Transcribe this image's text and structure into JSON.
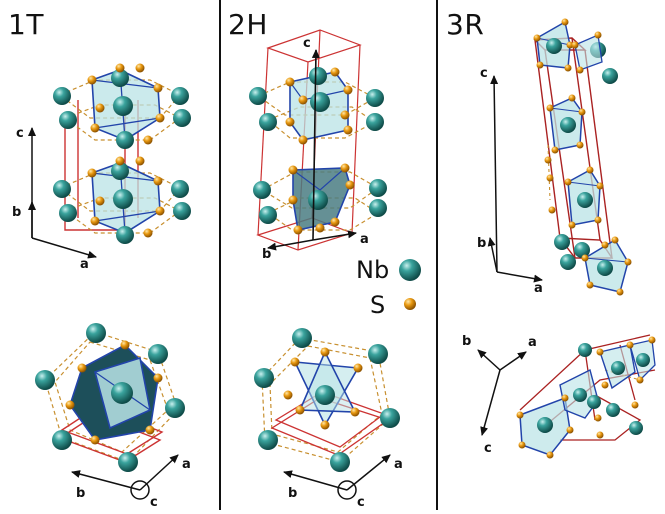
{
  "panels": [
    {
      "title": "1T"
    },
    {
      "title": "2H"
    },
    {
      "title": "3R"
    }
  ],
  "legend": {
    "nb_label": "Nb",
    "s_label": "S",
    "nb_color": "#2a8a85",
    "s_color": "#e0900e"
  },
  "axes": {
    "a": "a",
    "b": "b",
    "c": "c"
  },
  "colors": {
    "divider": "#111111",
    "unit_cell": "#cc3333",
    "polyhedron_fill": "#b9e3e6",
    "polyhedron_edge": "#2244aa",
    "bond": "#c89030"
  }
}
